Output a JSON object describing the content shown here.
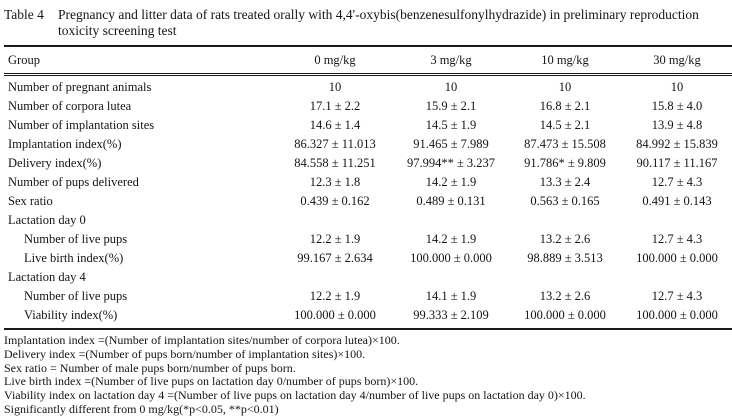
{
  "title": {
    "label": "Table 4",
    "caption": "Pregnancy and litter data of rats treated orally with 4,4'-oxybis(benzenesulfonylhydrazide) in preliminary reproduction toxicity screening test"
  },
  "table": {
    "group_header": "Group",
    "dose_columns": [
      "0 mg/kg",
      "3 mg/kg",
      "10 mg/kg",
      "30 mg/kg"
    ],
    "rows": [
      {
        "label": "Number of pregnant animals",
        "values": [
          "10",
          "10",
          "10",
          "10"
        ]
      },
      {
        "label": "Number of corpora lutea",
        "values": [
          "17.1 ± 2.2",
          "15.9 ± 2.1",
          "16.8 ± 2.1",
          "15.8 ± 4.0"
        ]
      },
      {
        "label": "Number of implantation sites",
        "values": [
          "14.6 ± 1.4",
          "14.5 ± 1.9",
          "14.5 ± 2.1",
          "13.9 ± 4.8"
        ]
      },
      {
        "label": "Implantation index(%)",
        "values": [
          "86.327 ± 11.013",
          "91.465 ± 7.989",
          "87.473 ± 15.508",
          "84.992 ± 15.839"
        ]
      },
      {
        "label": "Delivery index(%)",
        "values": [
          "84.558 ± 11.251",
          "97.994** ± 3.237",
          "91.786* ± 9.809",
          "90.117 ± 11.167"
        ]
      },
      {
        "label": "Number of pups delivered",
        "values": [
          "12.3 ± 1.8",
          "14.2 ± 1.9",
          "13.3 ± 2.4",
          "12.7 ± 4.3"
        ]
      },
      {
        "label": "Sex ratio",
        "values": [
          "0.439 ± 0.162",
          "0.489 ± 0.131",
          "0.563 ± 0.165",
          "0.491 ± 0.143"
        ]
      },
      {
        "label": "Lactation day 0",
        "values": [
          "",
          "",
          "",
          ""
        ]
      },
      {
        "label": "Number of live pups",
        "values": [
          "12.2 ± 1.9",
          "14.2 ± 1.9",
          "13.2 ± 2.6",
          "12.7 ± 4.3"
        ]
      },
      {
        "label": "Live birth index(%)",
        "values": [
          "99.167 ± 2.634",
          "100.000 ± 0.000",
          "98.889 ± 3.513",
          "100.000 ± 0.000"
        ]
      },
      {
        "label": "Lactation day 4",
        "values": [
          "",
          "",
          "",
          ""
        ]
      },
      {
        "label": "Number of live pups",
        "values": [
          "12.2 ± 1.9",
          "14.1 ± 1.9",
          "13.2 ± 2.6",
          "12.7 ± 4.3"
        ]
      },
      {
        "label": "Viability index(%)",
        "values": [
          "100.000 ± 0.000",
          "99.333 ± 2.109",
          "100.000 ± 0.000",
          "100.000 ± 0.000"
        ]
      }
    ]
  },
  "footnotes": [
    "Implantation index =(Number of implantation sites/number of corpora lutea)×100.",
    "Delivery index =(Number of pups born/number of implantation sites)×100.",
    "Sex ratio = Number of male pups born/number of pups born.",
    "Live birth index =(Number of live pups on lactation day 0/number of pups born)×100.",
    "Viability index on lactation day 4 =(Number of live pups on lactation day 4/number of live pups on lactation day 0)×100.",
    "Significantly different from 0 mg/kg(*p<0.05, **p<0.01)"
  ]
}
